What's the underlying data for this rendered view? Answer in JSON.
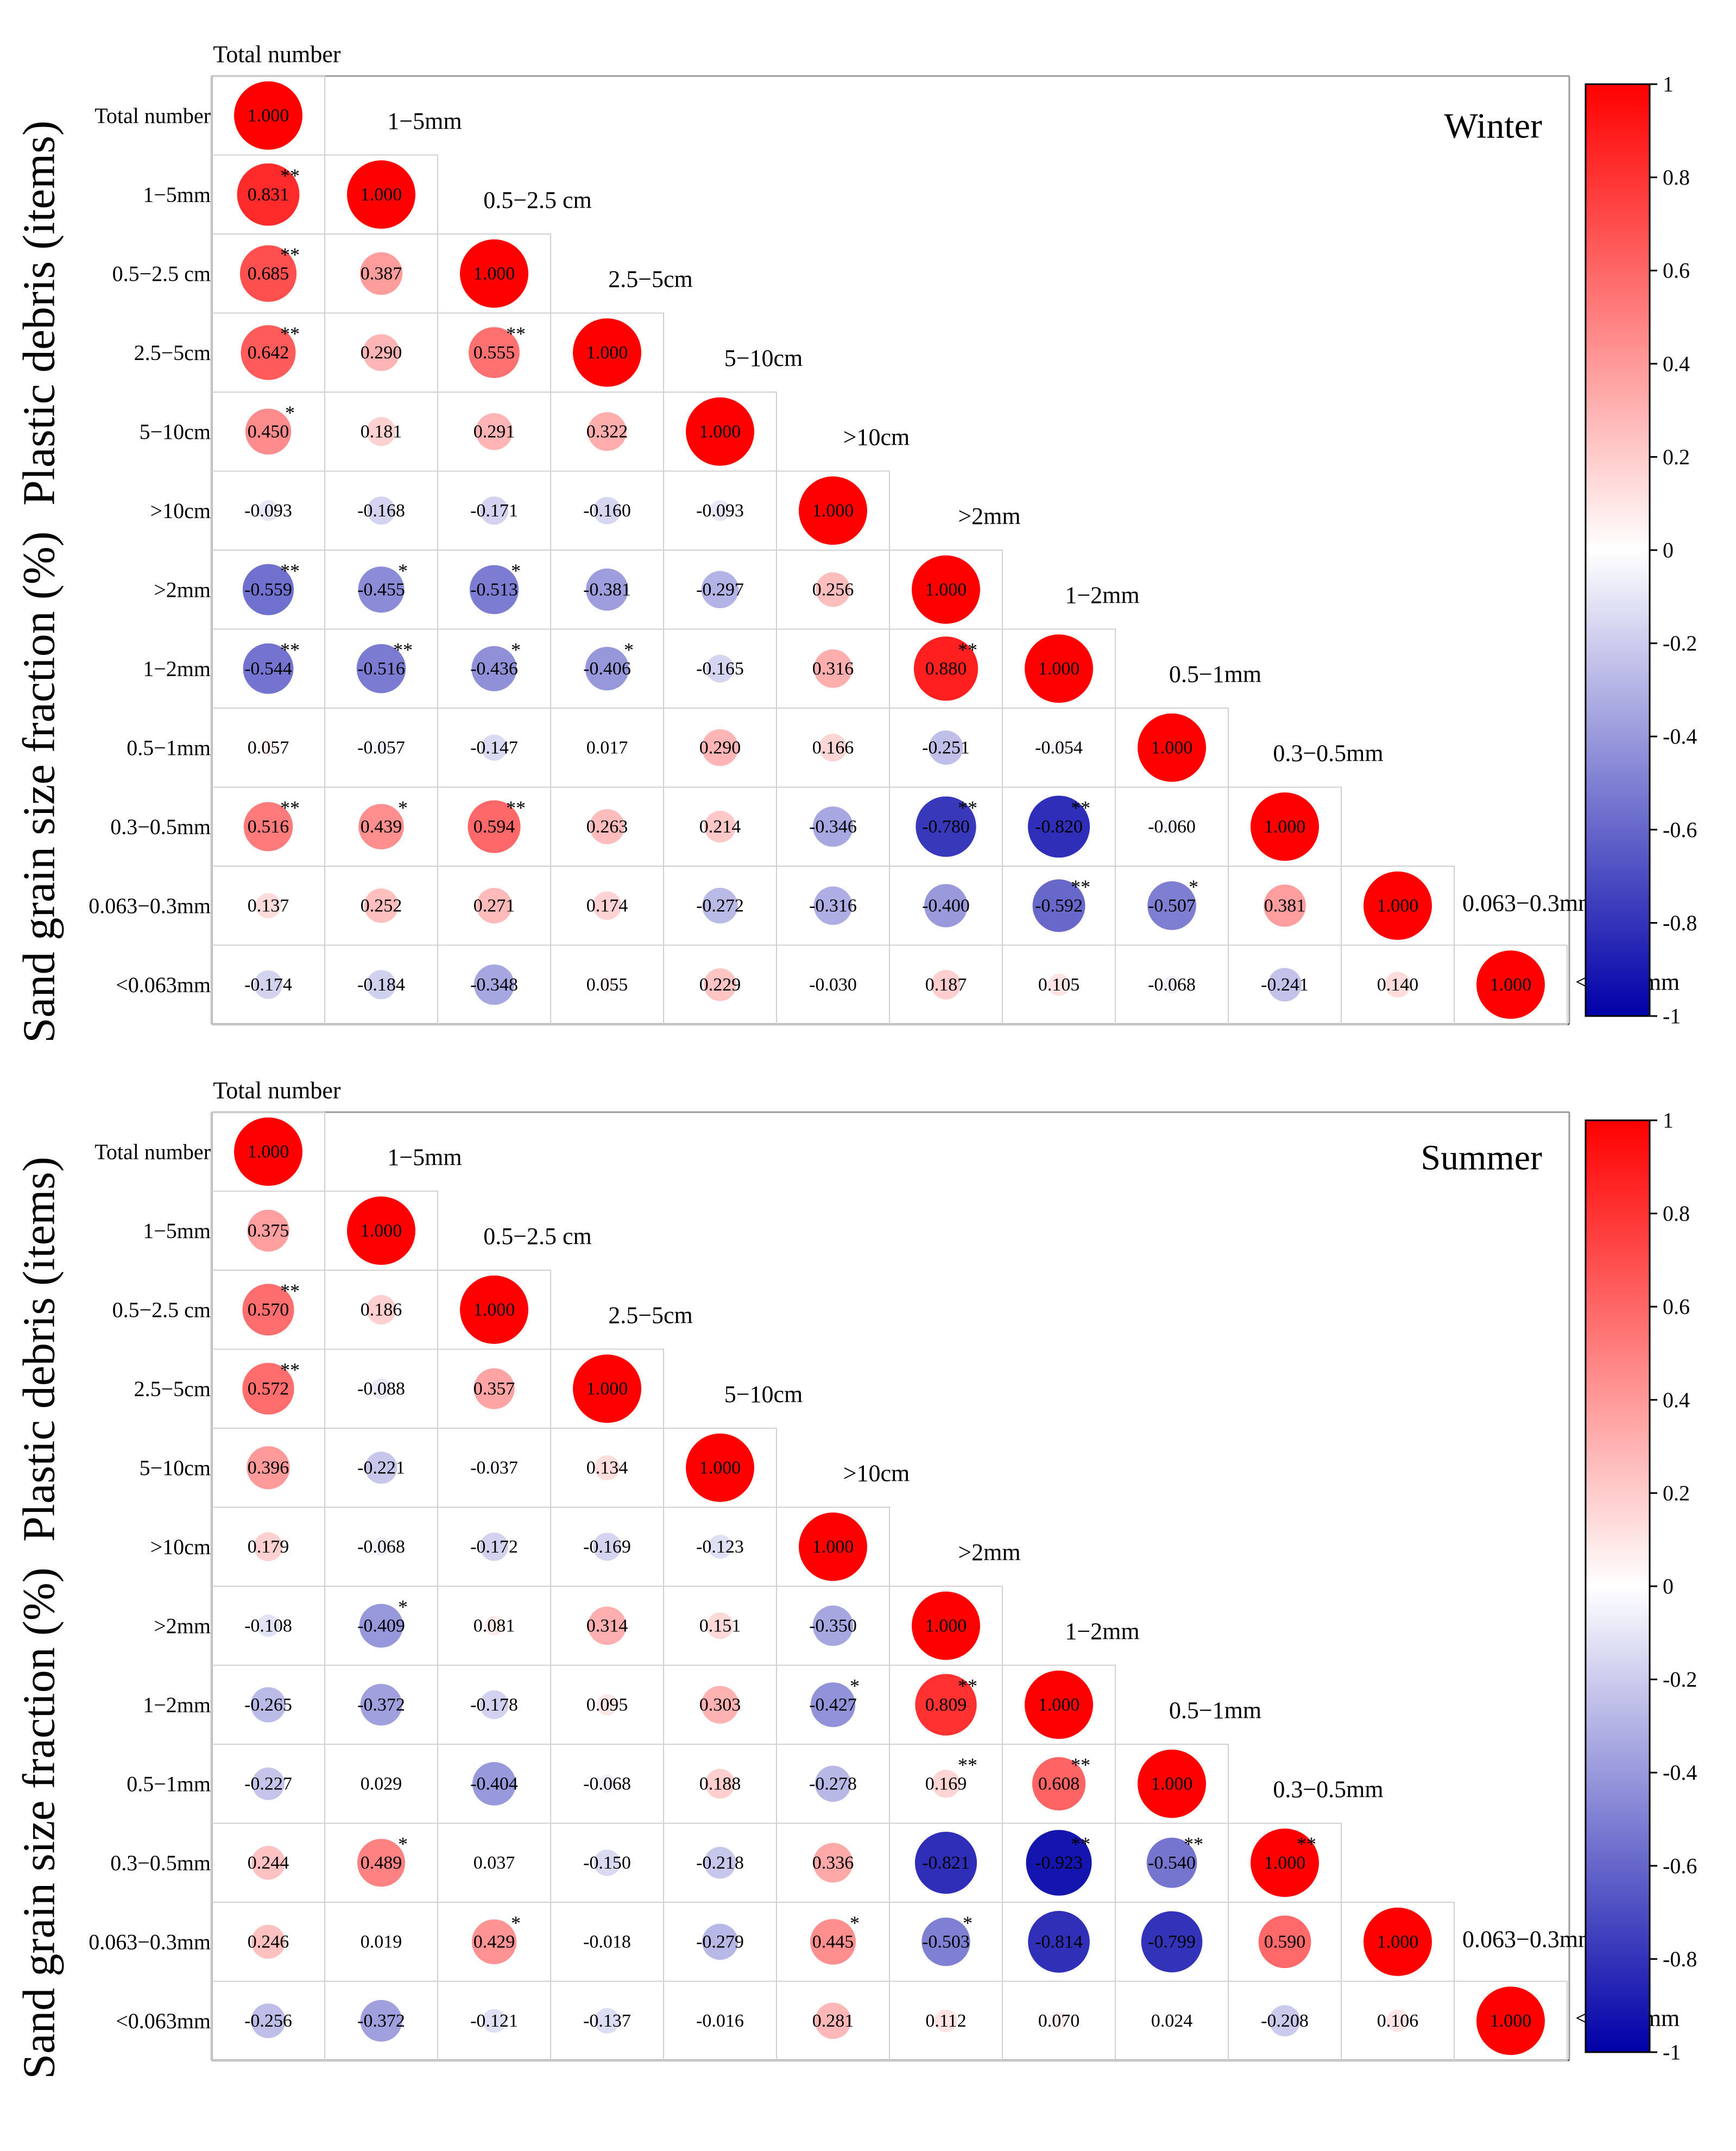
{
  "chart_data": [
    {
      "type": "heatmap",
      "title": "Winter",
      "group_labels": [
        "Plastic debris (items)",
        "Sand grain size fraction (%)"
      ],
      "variables": [
        "Total number",
        "1−5mm",
        "0.5−2.5 cm",
        "2.5−5cm",
        "5−10cm",
        ">10cm",
        ">2mm",
        "1−2mm",
        "0.5−1mm",
        "0.3−0.5mm",
        "0.063−0.3mm",
        "<0.063mm"
      ],
      "values": [
        [
          1.0
        ],
        [
          0.831,
          1.0
        ],
        [
          0.685,
          0.387,
          1.0
        ],
        [
          0.642,
          0.29,
          0.555,
          1.0
        ],
        [
          0.45,
          0.181,
          0.291,
          0.322,
          1.0
        ],
        [
          -0.093,
          -0.168,
          -0.171,
          -0.16,
          -0.093,
          1.0
        ],
        [
          -0.559,
          -0.455,
          -0.513,
          -0.381,
          -0.297,
          0.256,
          1.0
        ],
        [
          -0.544,
          -0.516,
          -0.436,
          -0.406,
          -0.165,
          0.316,
          0.88,
          1.0
        ],
        [
          0.057,
          -0.057,
          -0.147,
          0.017,
          0.29,
          0.166,
          -0.251,
          -0.054,
          1.0
        ],
        [
          0.516,
          0.439,
          0.594,
          0.263,
          0.214,
          -0.346,
          -0.78,
          -0.82,
          -0.06,
          1.0
        ],
        [
          0.137,
          0.252,
          0.271,
          0.174,
          -0.272,
          -0.316,
          -0.4,
          -0.592,
          -0.507,
          0.381,
          1.0
        ],
        [
          -0.174,
          -0.184,
          -0.348,
          0.055,
          0.229,
          -0.03,
          0.187,
          0.105,
          -0.068,
          -0.241,
          0.14,
          1.0
        ]
      ],
      "significance": [
        [
          ""
        ],
        [
          "**",
          ""
        ],
        [
          "**",
          "",
          ""
        ],
        [
          "**",
          "",
          "**",
          ""
        ],
        [
          "*",
          "",
          "",
          "",
          ""
        ],
        [
          "",
          "",
          "",
          "",
          "",
          ""
        ],
        [
          "**",
          "*",
          "*",
          "",
          "",
          "",
          ""
        ],
        [
          "**",
          "**",
          "*",
          "*",
          "",
          "",
          "**",
          ""
        ],
        [
          "",
          "",
          "",
          "",
          "",
          "",
          "",
          "",
          ""
        ],
        [
          "**",
          "*",
          "**",
          "",
          "",
          "",
          "**",
          "**",
          "",
          ""
        ],
        [
          "",
          "",
          "",
          "",
          "",
          "",
          "",
          "**",
          "*",
          "",
          ""
        ],
        [
          "",
          "",
          "",
          "",
          "",
          "",
          "",
          "",
          "",
          "",
          "",
          ""
        ]
      ],
      "colorbar": {
        "min": -1,
        "max": 1,
        "ticks": [
          "1",
          "0.8",
          "0.6",
          "0.4",
          "0.2",
          "0",
          "-0.2",
          "-0.4",
          "-0.6",
          "-0.8",
          "-1"
        ]
      },
      "colors": {
        "negative": "#0000a8",
        "zero": "#ffffff",
        "positive": "#ff0000"
      }
    },
    {
      "type": "heatmap",
      "title": "Summer",
      "group_labels": [
        "Plastic debris (items)",
        "Sand grain size fraction (%)"
      ],
      "variables": [
        "Total number",
        "1−5mm",
        "0.5−2.5 cm",
        "2.5−5cm",
        "5−10cm",
        ">10cm",
        ">2mm",
        "1−2mm",
        "0.5−1mm",
        "0.3−0.5mm",
        "0.063−0.3mm",
        "<0.063mm"
      ],
      "values": [
        [
          1.0
        ],
        [
          0.375,
          1.0
        ],
        [
          0.57,
          0.186,
          1.0
        ],
        [
          0.572,
          -0.088,
          0.357,
          1.0
        ],
        [
          0.396,
          -0.221,
          -0.037,
          0.134,
          1.0
        ],
        [
          0.179,
          -0.068,
          -0.172,
          -0.169,
          -0.123,
          1.0
        ],
        [
          -0.108,
          -0.409,
          0.081,
          0.314,
          0.151,
          -0.35,
          1.0
        ],
        [
          -0.265,
          -0.372,
          -0.178,
          0.095,
          0.303,
          -0.427,
          0.809,
          1.0
        ],
        [
          -0.227,
          0.029,
          -0.404,
          -0.068,
          0.188,
          -0.278,
          0.169,
          0.608,
          1.0
        ],
        [
          0.244,
          0.489,
          0.037,
          -0.15,
          -0.218,
          0.336,
          -0.821,
          -0.923,
          -0.54,
          1.0
        ],
        [
          0.246,
          0.019,
          0.429,
          -0.018,
          -0.279,
          0.445,
          -0.503,
          -0.814,
          -0.799,
          0.59,
          1.0
        ],
        [
          -0.256,
          -0.372,
          -0.121,
          -0.137,
          -0.016,
          0.281,
          0.112,
          0.07,
          0.024,
          -0.208,
          0.106,
          1.0
        ]
      ],
      "significance": [
        [
          ""
        ],
        [
          "",
          ""
        ],
        [
          "**",
          "",
          ""
        ],
        [
          "**",
          "",
          "",
          ""
        ],
        [
          "",
          "",
          "",
          "",
          ""
        ],
        [
          "",
          "",
          "",
          "",
          "",
          ""
        ],
        [
          "",
          "*",
          "",
          "",
          "",
          "",
          ""
        ],
        [
          "",
          "",
          "",
          "",
          "",
          "*",
          "**",
          ""
        ],
        [
          "",
          "",
          "",
          "",
          "",
          "",
          "**",
          "**",
          ""
        ],
        [
          "",
          "*",
          "",
          "",
          "",
          "",
          "",
          "**",
          "**",
          "**"
        ],
        [
          "",
          "",
          "*",
          "",
          "",
          "*",
          "*",
          "",
          "",
          "",
          ""
        ],
        [
          "",
          "",
          "",
          "",
          "",
          "",
          "",
          "",
          "",
          "",
          "",
          ""
        ]
      ],
      "colorbar": {
        "min": -1,
        "max": 1,
        "ticks": [
          "1",
          "0.8",
          "0.6",
          "0.4",
          "0.2",
          "0",
          "-0.2",
          "-0.4",
          "-0.6",
          "-0.8",
          "-1"
        ]
      },
      "colors": {
        "negative": "#0000a8",
        "zero": "#ffffff",
        "positive": "#ff0000"
      }
    }
  ]
}
